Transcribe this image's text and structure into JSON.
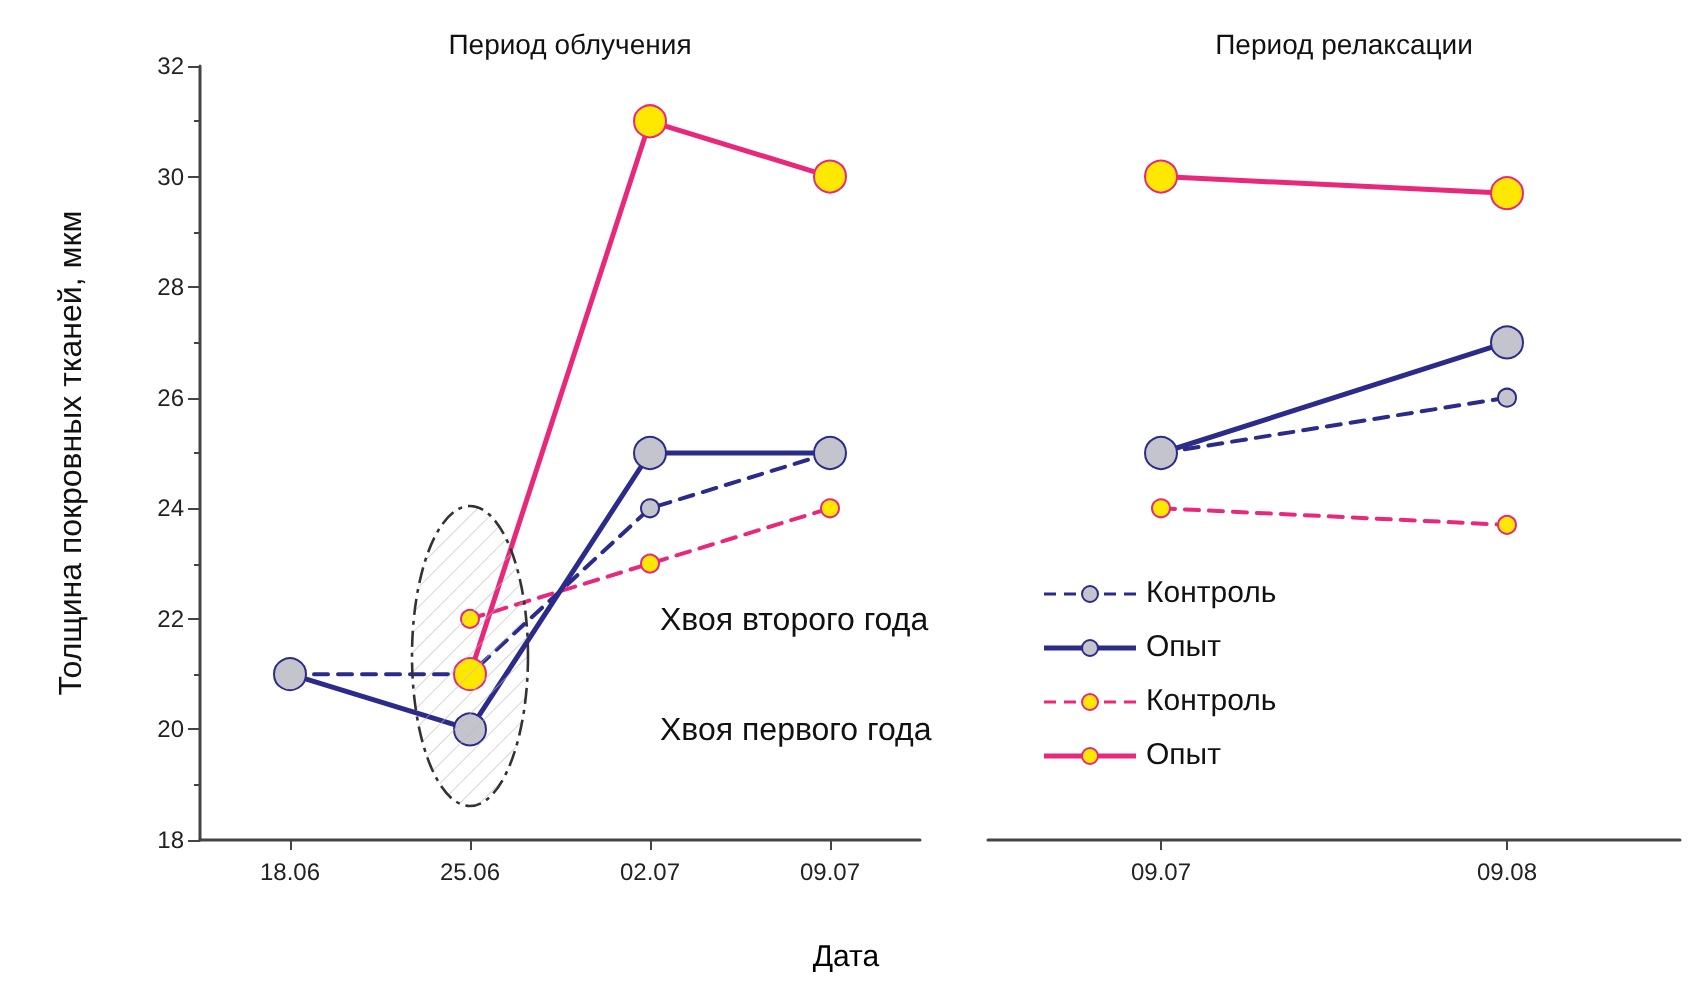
{
  "chart_data": [
    {
      "type": "line",
      "title": "Период облучения",
      "xlabel": "Дата",
      "ylabel": "Толщина покровных тканей, мкм",
      "categories": [
        "18.06",
        "25.06",
        "02.07",
        "09.07"
      ],
      "series": [
        {
          "name": "Контроль",
          "color": "#2b2b8c",
          "line_style": "dashed",
          "values": [
            21,
            21,
            24,
            25
          ]
        },
        {
          "name": "Опыт",
          "color": "#2b2b8c",
          "line_style": "solid",
          "values": [
            21,
            20,
            25,
            25
          ]
        },
        {
          "name": "Контроль",
          "color": "#e8287a",
          "line_style": "dashed",
          "values": [
            null,
            22,
            23,
            24
          ]
        },
        {
          "name": "Опыт",
          "color": "#e8287a",
          "line_style": "solid",
          "values": [
            null,
            21,
            31,
            30
          ]
        }
      ],
      "annotations": [
        "Хвоя второго года",
        "Хвоя первого года"
      ],
      "ylim": [
        18,
        32
      ],
      "yticks": [
        18,
        20,
        22,
        24,
        26,
        28,
        30,
        32
      ],
      "grid": false,
      "legend": "bottom right",
      "marker": "circle"
    },
    {
      "type": "line",
      "title": "Период релаксации",
      "categories": [
        "09.07",
        "09.08"
      ],
      "series": [
        {
          "color": "#2b2b8c",
          "line_style": "dashed",
          "values": [
            25,
            26
          ]
        },
        {
          "color": "#2b2b8c",
          "line_style": "solid",
          "values": [
            25,
            27
          ]
        },
        {
          "color": "#e8287a",
          "line_style": "dashed",
          "values": [
            24,
            23.7
          ]
        },
        {
          "color": "#e8287a",
          "line_style": "solid",
          "values": [
            30,
            29.7
          ]
        }
      ],
      "ylim": [
        18,
        32
      ],
      "yticks": [
        18,
        20,
        22,
        24,
        26,
        28,
        30,
        32
      ],
      "tick_labels": "x",
      "grid": false,
      "legend": false,
      "marker": "circle"
    }
  ]
}
